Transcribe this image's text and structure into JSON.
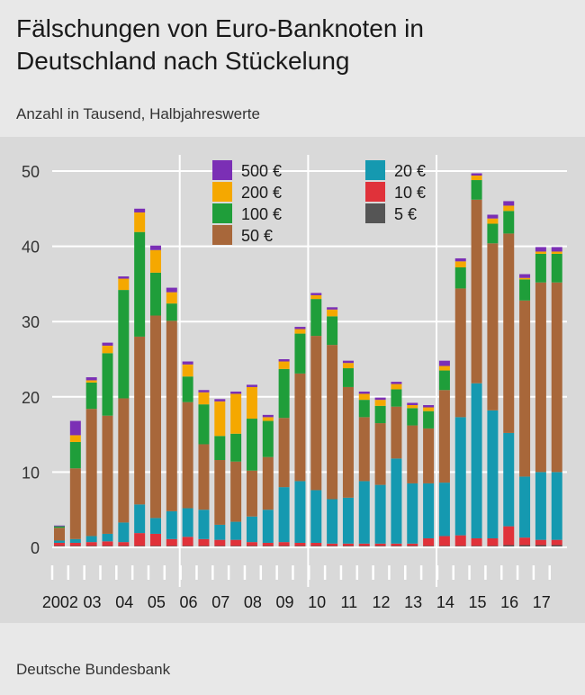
{
  "header": {
    "title": "Fälschungen von Euro-Banknoten in Deutschland nach Stückelung",
    "subtitle": "Anzahl in Tausend, Halbjahreswerte"
  },
  "footer": {
    "source": "Deutsche Bundesbank"
  },
  "colors": {
    "500 €": "#7b2fb5",
    "200 €": "#f5a800",
    "100 €": "#1f9e3a",
    "50 €": "#a8673a",
    "20 €": "#1599b0",
    "10 €": "#e0323a",
    "5 €": "#555555",
    "background": "#d9d9d9",
    "grid": "#ffffff"
  },
  "chart_data": {
    "type": "bar",
    "stacked": true,
    "grid": true,
    "ylim": [
      0,
      52
    ],
    "yticks": [
      0,
      10,
      20,
      30,
      40,
      50
    ],
    "year_labels": [
      "2002",
      "03",
      "04",
      "05",
      "06",
      "07",
      "08",
      "09",
      "10",
      "11",
      "12",
      "13",
      "14",
      "15",
      "16",
      "17"
    ],
    "legend": [
      [
        "500 €",
        "200 €",
        "100 €",
        "50 €"
      ],
      [
        "20 €",
        "10 €",
        "5 €"
      ]
    ],
    "series": [
      {
        "name": "5 €",
        "values": [
          0.2,
          0.2,
          0.2,
          0.2,
          0.2,
          0.2,
          0.2,
          0.2,
          0.2,
          0.2,
          0.2,
          0.2,
          0.2,
          0.2,
          0.2,
          0.2,
          0.2,
          0.2,
          0.2,
          0.2,
          0.2,
          0.2,
          0.2,
          0.2,
          0.2,
          0.2,
          0.2,
          0.2,
          0.3,
          0.3,
          0.3,
          0.3
        ]
      },
      {
        "name": "10 €",
        "values": [
          0.4,
          0.4,
          0.5,
          0.6,
          0.5,
          1.7,
          1.6,
          0.9,
          1.2,
          0.9,
          0.8,
          0.8,
          0.5,
          0.4,
          0.5,
          0.4,
          0.4,
          0.3,
          0.3,
          0.3,
          0.3,
          0.3,
          0.3,
          1.0,
          1.3,
          1.4,
          1.0,
          1.0,
          2.5,
          1.0,
          0.7,
          0.7
        ]
      },
      {
        "name": "20 €",
        "values": [
          0.3,
          0.5,
          0.8,
          1.0,
          2.6,
          3.8,
          2.1,
          3.7,
          3.8,
          3.9,
          2.0,
          2.4,
          3.4,
          4.4,
          7.3,
          8.2,
          7.0,
          5.9,
          6.1,
          8.3,
          7.8,
          11.3,
          8.0,
          7.3,
          7.1,
          15.7,
          20.6,
          17.0,
          12.4,
          8.1,
          9.0,
          9.0
        ]
      },
      {
        "name": "50 €",
        "values": [
          1.7,
          9.4,
          16.9,
          15.7,
          16.5,
          22.3,
          26.9,
          25.3,
          14.1,
          8.7,
          8.6,
          8.0,
          6.1,
          7.0,
          9.2,
          14.3,
          20.5,
          20.5,
          14.7,
          8.5,
          8.2,
          6.9,
          7.7,
          7.3,
          12.3,
          17.1,
          24.4,
          22.2,
          26.5,
          23.4,
          25.2,
          25.2
        ]
      },
      {
        "name": "100 €",
        "values": [
          0.2,
          3.5,
          3.5,
          8.3,
          14.4,
          13.9,
          5.7,
          2.3,
          3.4,
          5.3,
          3.2,
          3.7,
          6.9,
          4.8,
          6.5,
          5.3,
          4.9,
          3.8,
          2.5,
          2.3,
          2.3,
          2.3,
          2.3,
          2.3,
          2.6,
          2.8,
          2.6,
          2.6,
          3.0,
          2.8,
          3.8,
          3.8
        ]
      },
      {
        "name": "200 €",
        "values": [
          0.0,
          0.9,
          0.3,
          1.0,
          1.5,
          2.6,
          3.0,
          1.5,
          1.6,
          1.6,
          4.6,
          5.3,
          4.2,
          0.5,
          1.0,
          0.6,
          0.5,
          0.9,
          0.7,
          0.8,
          0.8,
          0.7,
          0.4,
          0.5,
          0.6,
          0.8,
          0.6,
          0.7,
          0.7,
          0.2,
          0.3,
          0.3
        ]
      },
      {
        "name": "500 €",
        "values": [
          0.1,
          1.9,
          0.4,
          0.4,
          0.3,
          0.5,
          0.6,
          0.6,
          0.4,
          0.3,
          0.3,
          0.3,
          0.3,
          0.3,
          0.3,
          0.3,
          0.3,
          0.3,
          0.3,
          0.3,
          0.3,
          0.3,
          0.3,
          0.3,
          0.7,
          0.4,
          0.3,
          0.5,
          0.6,
          0.5,
          0.6,
          0.6
        ]
      }
    ]
  }
}
